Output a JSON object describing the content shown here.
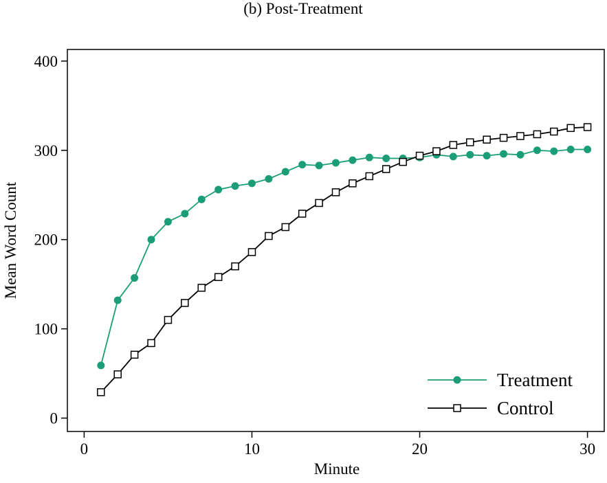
{
  "chart_data": {
    "type": "line",
    "title": "(b) Post-Treatment",
    "xlabel": "Minute",
    "ylabel": "Mean Word Count",
    "xlim": [
      -1,
      31
    ],
    "ylim": [
      -15,
      413
    ],
    "xticks": [
      0,
      10,
      20,
      30
    ],
    "yticks": [
      0,
      100,
      200,
      300,
      400
    ],
    "xtick_labels": [
      "0",
      "10",
      "20",
      "30"
    ],
    "ytick_labels": [
      "0",
      "100",
      "200",
      "300",
      "400"
    ],
    "grid": false,
    "legend_position": "bottom-right",
    "x": [
      1,
      2,
      3,
      4,
      5,
      6,
      7,
      8,
      9,
      10,
      11,
      12,
      13,
      14,
      15,
      16,
      17,
      18,
      19,
      20,
      21,
      22,
      23,
      24,
      25,
      26,
      27,
      28,
      29,
      30
    ],
    "series": [
      {
        "name": "Treatment",
        "color": "#1b9e77",
        "marker": "filled-circle",
        "values": [
          59,
          132,
          157,
          200,
          220,
          229,
          245,
          256,
          260,
          263,
          268,
          276,
          284,
          283,
          286,
          289,
          292,
          291,
          291,
          292,
          295,
          293,
          295,
          294,
          296,
          295,
          300,
          299,
          301,
          301
        ]
      },
      {
        "name": "Control",
        "color": "#000000",
        "marker": "hollow-square",
        "values": [
          29,
          49,
          71,
          84,
          110,
          129,
          146,
          158,
          170,
          186,
          204,
          214,
          229,
          241,
          253,
          263,
          271,
          279,
          287,
          294,
          299,
          306,
          309,
          312,
          314,
          316,
          318,
          321,
          325,
          326
        ]
      }
    ]
  }
}
